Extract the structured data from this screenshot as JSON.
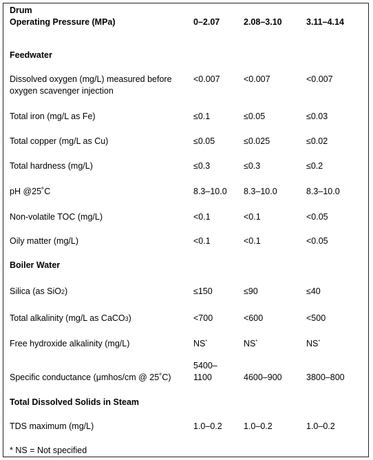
{
  "header": {
    "row_label_line1": "Drum",
    "row_label_line2": "Operating Pressure (MPa)",
    "columns": [
      "0–2.07",
      "2.08–3.10",
      "3.11–4.14"
    ]
  },
  "sections": {
    "feedwater": "Feedwater",
    "boiler_water": "Boiler Water",
    "steam": "Total Dissolved Solids in Steam"
  },
  "rows": {
    "dissolved_oxygen": {
      "label": "Dissolved oxygen (mg/L) measured before oxygen scavenger injection",
      "v": [
        "<0.007",
        "<0.007",
        "<0.007"
      ]
    },
    "total_iron": {
      "label": "Total iron (mg/L as Fe)",
      "v": [
        "≤0.1",
        "≤0.05",
        "≤0.03"
      ]
    },
    "total_copper": {
      "label": "Total copper (mg/L as Cu)",
      "v": [
        "≤0.05",
        "≤0.025",
        "≤0.02"
      ]
    },
    "total_hardness": {
      "label": "Total hardness (mg/L)",
      "v": [
        "≤0.3",
        "≤0.3",
        "≤0.2"
      ]
    },
    "ph": {
      "label": "pH @25˚C",
      "v": [
        "8.3–10.0",
        "8.3–10.0",
        "8.3–10.0"
      ]
    },
    "toc": {
      "label": "Non-volatile TOC (mg/L)",
      "v": [
        "<0.1",
        "<0.1",
        "<0.05"
      ]
    },
    "oily": {
      "label": "Oily matter (mg/L)",
      "v": [
        "<0.1",
        "<0.1",
        "<0.05"
      ]
    },
    "silica": {
      "label_pre": "Silica (as SiO",
      "label_sub": "2",
      "label_post": ")",
      "v": [
        "≤150",
        "≤90",
        "≤40"
      ]
    },
    "alkalinity": {
      "label_pre": "Total alkalinity (mg/L as CaCO",
      "label_sub": "3",
      "label_post": ")",
      "v": [
        "<700",
        "<600",
        "<500"
      ]
    },
    "free_hydroxide": {
      "label": "Free hydroxide alkalinity (mg/L)",
      "v": [
        "NS",
        "NS",
        "NS"
      ],
      "sup": "*"
    },
    "conductance": {
      "label": "Specific conductance (μmhos/cm @ 25˚C)",
      "v": [
        "5400–1100",
        "4600–900",
        "3800–800"
      ]
    },
    "tds": {
      "label": "TDS maximum (mg/L)",
      "v": [
        "1.0–0.2",
        "1.0–0.2",
        "1.0–0.2"
      ]
    }
  },
  "footnote": "* NS = Not specified"
}
